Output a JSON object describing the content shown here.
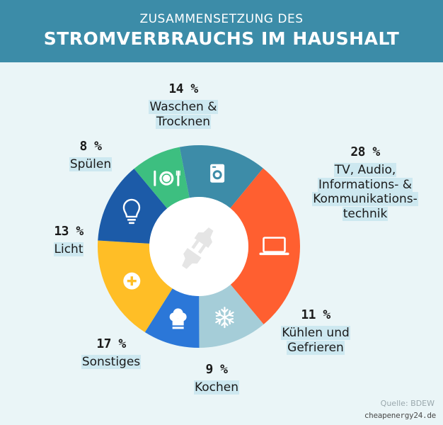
{
  "header": {
    "subtitle": "ZUSAMMENSETZUNG DES",
    "title": "STROMVERBRAUCHS IM HAUSHALT"
  },
  "chart_data": {
    "type": "pie",
    "variant": "donut",
    "subtitle": "ZUSAMMENSETZUNG DES",
    "title": "STROMVERBRAUCHS IM HAUSHALT",
    "slices": [
      {
        "label": "Waschen &\nTrocknen",
        "value": 14,
        "value_label": "14 %",
        "color": "#3d8ca8",
        "icon": "washing-machine-icon",
        "key": "waschen"
      },
      {
        "label": "TV, Audio,\nInformations- &\nKommunikations-\ntechnik",
        "value": 28,
        "value_label": "28 %",
        "color": "#ff5f30",
        "icon": "laptop-icon",
        "key": "tv"
      },
      {
        "label": "Kühlen und\nGefrieren",
        "value": 11,
        "value_label": "11 %",
        "color": "#a5cdd8",
        "icon": "snowflake-icon",
        "key": "kuehlen"
      },
      {
        "label": "Kochen",
        "value": 9,
        "value_label": "9 %",
        "color": "#2b77d8",
        "icon": "chef-hat-icon",
        "key": "kochen"
      },
      {
        "label": "Sonstiges",
        "value": 17,
        "value_label": "17 %",
        "color": "#ffbe26",
        "icon": "plus-circle-icon",
        "key": "sonstiges"
      },
      {
        "label": "Licht",
        "value": 13,
        "value_label": "13 %",
        "color": "#1c5ba8",
        "icon": "lightbulb-icon",
        "key": "licht"
      },
      {
        "label": "Spülen",
        "value": 8,
        "value_label": "8 %",
        "color": "#3dbf80",
        "icon": "plate-cutlery-icon",
        "key": "spuelen"
      }
    ],
    "center_icon": "plug-icon"
  },
  "footer": {
    "source": "Quelle: BDEW",
    "brand": "cheapenergy24.de"
  }
}
